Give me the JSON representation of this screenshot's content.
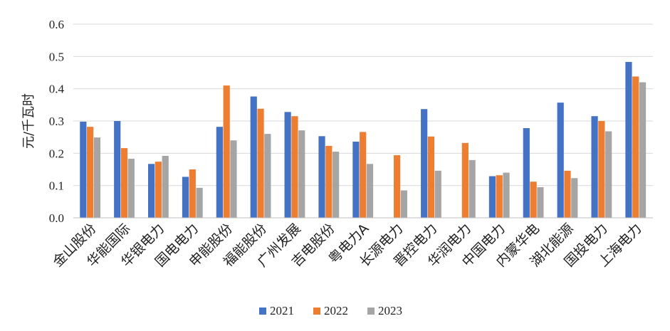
{
  "chart_data": {
    "type": "bar",
    "ylabel": "元/千瓦时",
    "ylim": [
      0,
      0.6
    ],
    "yticks": [
      "0.0",
      "0.1",
      "0.2",
      "0.3",
      "0.4",
      "0.5",
      "0.6"
    ],
    "grid": true,
    "legend": "bottom-center",
    "categories": [
      "金山股份",
      "华能国际",
      "华银电力",
      "国电电力",
      "申能股份",
      "福能股份",
      "广州发展",
      "吉电股份",
      "粤电力A",
      "长源电力",
      "晋控电力",
      "华润电力",
      "中国电力",
      "内蒙华电",
      "湖北能源",
      "国投电力",
      "上海电力"
    ],
    "series": [
      {
        "name": "2021",
        "color": "#4472C4",
        "values": [
          0.298,
          0.3,
          0.167,
          0.127,
          0.282,
          0.376,
          0.328,
          0.253,
          0.236,
          null,
          0.337,
          null,
          0.129,
          0.278,
          0.357,
          0.315,
          0.483
        ]
      },
      {
        "name": "2022",
        "color": "#ED7D31",
        "values": [
          0.282,
          0.216,
          0.174,
          0.15,
          0.41,
          0.338,
          0.315,
          0.223,
          0.266,
          0.194,
          0.252,
          0.232,
          0.132,
          0.112,
          0.146,
          0.3,
          0.438
        ]
      },
      {
        "name": "2023",
        "color": "#A5A5A5",
        "values": [
          0.249,
          0.183,
          0.192,
          0.093,
          0.24,
          0.26,
          0.271,
          0.205,
          0.167,
          0.085,
          0.146,
          0.179,
          0.14,
          0.095,
          0.123,
          0.268,
          0.42
        ]
      }
    ]
  }
}
